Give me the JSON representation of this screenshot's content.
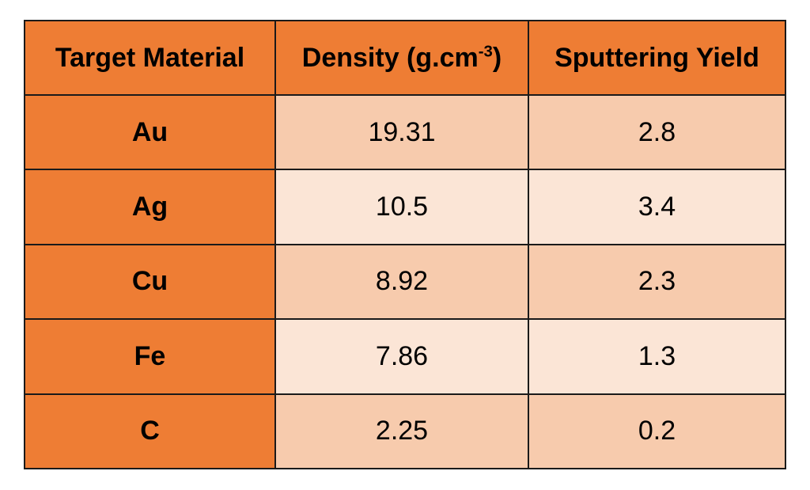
{
  "table": {
    "headers": {
      "material": "Target Material",
      "density_main": "Density (g.cm",
      "density_sup": "-3",
      "density_close": ")",
      "yield": "Sputtering Yield"
    },
    "rows": [
      {
        "material": "Au",
        "density": "19.31",
        "yield": "2.8"
      },
      {
        "material": "Ag",
        "density": "10.5",
        "yield": "3.4"
      },
      {
        "material": "Cu",
        "density": "8.92",
        "yield": "2.3"
      },
      {
        "material": "Fe",
        "density": "7.86",
        "yield": "1.3"
      },
      {
        "material": "C",
        "density": "2.25",
        "yield": "0.2"
      }
    ],
    "colors": {
      "header_and_first_column": "#ee7d34",
      "row_shade_dark": "#f7cbad",
      "row_shade_light": "#fbe5d6",
      "border": "#1a1a1a"
    }
  }
}
